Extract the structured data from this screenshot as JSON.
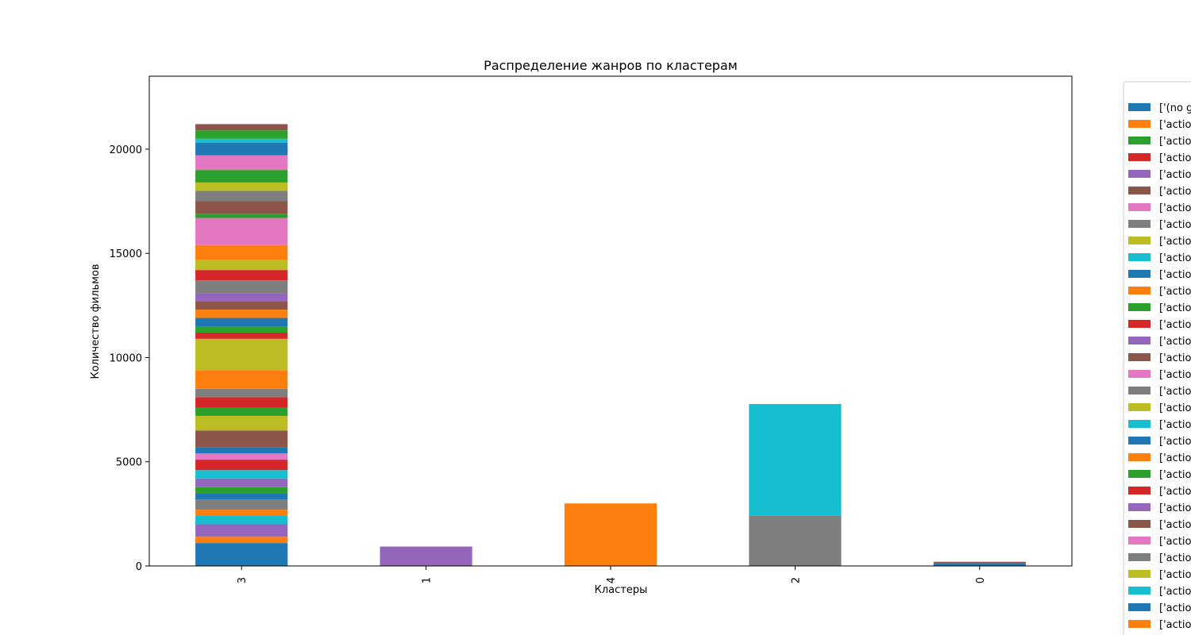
{
  "chart_data": {
    "type": "bar",
    "stacked": true,
    "title": "Распределение жанров по кластерам",
    "xlabel": "Кластеры",
    "ylabel": "Количество фильмов",
    "ylim": [
      0,
      23500
    ],
    "yticks": [
      0,
      5000,
      10000,
      15000,
      20000
    ],
    "categories": [
      "3",
      "1",
      "4",
      "2",
      "0"
    ],
    "grid": false,
    "legend_position": "right (outside, clipped)",
    "palette": [
      "#1f77b4",
      "#ff7f0e",
      "#2ca02c",
      "#d62728",
      "#9467bd",
      "#8c564b",
      "#e377c2",
      "#7f7f7f",
      "#bcbd22",
      "#17becf"
    ],
    "stacks": [
      {
        "category": "3",
        "segments": [
          {
            "value": 1100,
            "color": "#1f77b4"
          },
          {
            "value": 300,
            "color": "#ff7f0e"
          },
          {
            "value": 600,
            "color": "#9467bd"
          },
          {
            "value": 400,
            "color": "#17becf"
          },
          {
            "value": 300,
            "color": "#ff7f0e"
          },
          {
            "value": 500,
            "color": "#7f7f7f"
          },
          {
            "value": 300,
            "color": "#1f77b4"
          },
          {
            "value": 300,
            "color": "#2ca02c"
          },
          {
            "value": 400,
            "color": "#9467bd"
          },
          {
            "value": 400,
            "color": "#17becf"
          },
          {
            "value": 500,
            "color": "#d62728"
          },
          {
            "value": 300,
            "color": "#e377c2"
          },
          {
            "value": 300,
            "color": "#1f77b4"
          },
          {
            "value": 800,
            "color": "#8c564b"
          },
          {
            "value": 700,
            "color": "#bcbd22"
          },
          {
            "value": 400,
            "color": "#2ca02c"
          },
          {
            "value": 500,
            "color": "#d62728"
          },
          {
            "value": 400,
            "color": "#7f7f7f"
          },
          {
            "value": 900,
            "color": "#ff7f0e"
          },
          {
            "value": 1500,
            "color": "#bcbd22"
          },
          {
            "value": 300,
            "color": "#d62728"
          },
          {
            "value": 300,
            "color": "#2ca02c"
          },
          {
            "value": 400,
            "color": "#1f77b4"
          },
          {
            "value": 400,
            "color": "#ff7f0e"
          },
          {
            "value": 400,
            "color": "#8c564b"
          },
          {
            "value": 400,
            "color": "#9467bd"
          },
          {
            "value": 600,
            "color": "#7f7f7f"
          },
          {
            "value": 500,
            "color": "#d62728"
          },
          {
            "value": 500,
            "color": "#bcbd22"
          },
          {
            "value": 700,
            "color": "#ff7f0e"
          },
          {
            "value": 1300,
            "color": "#e377c2"
          },
          {
            "value": 200,
            "color": "#2ca02c"
          },
          {
            "value": 600,
            "color": "#8c564b"
          },
          {
            "value": 500,
            "color": "#7f7f7f"
          },
          {
            "value": 400,
            "color": "#bcbd22"
          },
          {
            "value": 600,
            "color": "#2ca02c"
          },
          {
            "value": 700,
            "color": "#e377c2"
          },
          {
            "value": 600,
            "color": "#1f77b4"
          },
          {
            "value": 200,
            "color": "#17becf"
          },
          {
            "value": 400,
            "color": "#2ca02c"
          },
          {
            "value": 300,
            "color": "#8c564b"
          }
        ]
      },
      {
        "category": "1",
        "segments": [
          {
            "value": 930,
            "color": "#9467bd"
          }
        ]
      },
      {
        "category": "4",
        "segments": [
          {
            "value": 3000,
            "color": "#ff7f0e"
          }
        ]
      },
      {
        "category": "2",
        "segments": [
          {
            "value": 2430,
            "color": "#7f7f7f"
          },
          {
            "value": 5340,
            "color": "#17becf"
          }
        ]
      },
      {
        "category": "0",
        "segments": [
          {
            "value": 120,
            "color": "#1f77b4"
          },
          {
            "value": 80,
            "color": "#8c564b"
          }
        ]
      }
    ],
    "legend_entries": [
      {
        "label": "['(no g",
        "color": "#1f77b4"
      },
      {
        "label": "['actio",
        "color": "#ff7f0e"
      },
      {
        "label": "['actio",
        "color": "#2ca02c"
      },
      {
        "label": "['actio",
        "color": "#d62728"
      },
      {
        "label": "['actio",
        "color": "#9467bd"
      },
      {
        "label": "['actio",
        "color": "#8c564b"
      },
      {
        "label": "['actio",
        "color": "#e377c2"
      },
      {
        "label": "['actio",
        "color": "#7f7f7f"
      },
      {
        "label": "['actio",
        "color": "#bcbd22"
      },
      {
        "label": "['actio",
        "color": "#17becf"
      },
      {
        "label": "['actio",
        "color": "#1f77b4"
      },
      {
        "label": "['actio",
        "color": "#ff7f0e"
      },
      {
        "label": "['actio",
        "color": "#2ca02c"
      },
      {
        "label": "['actio",
        "color": "#d62728"
      },
      {
        "label": "['actio",
        "color": "#9467bd"
      },
      {
        "label": "['actio",
        "color": "#8c564b"
      },
      {
        "label": "['actio",
        "color": "#e377c2"
      },
      {
        "label": "['actio",
        "color": "#7f7f7f"
      },
      {
        "label": "['actio",
        "color": "#bcbd22"
      },
      {
        "label": "['actio",
        "color": "#17becf"
      },
      {
        "label": "['actio",
        "color": "#1f77b4"
      },
      {
        "label": "['actio",
        "color": "#ff7f0e"
      },
      {
        "label": "['actio",
        "color": "#2ca02c"
      },
      {
        "label": "['actio",
        "color": "#d62728"
      },
      {
        "label": "['actio",
        "color": "#9467bd"
      },
      {
        "label": "['actio",
        "color": "#8c564b"
      },
      {
        "label": "['actio",
        "color": "#e377c2"
      },
      {
        "label": "['actio",
        "color": "#7f7f7f"
      },
      {
        "label": "['actio",
        "color": "#bcbd22"
      },
      {
        "label": "['actio",
        "color": "#17becf"
      },
      {
        "label": "['actio",
        "color": "#1f77b4"
      },
      {
        "label": "['actio",
        "color": "#ff7f0e"
      }
    ]
  }
}
